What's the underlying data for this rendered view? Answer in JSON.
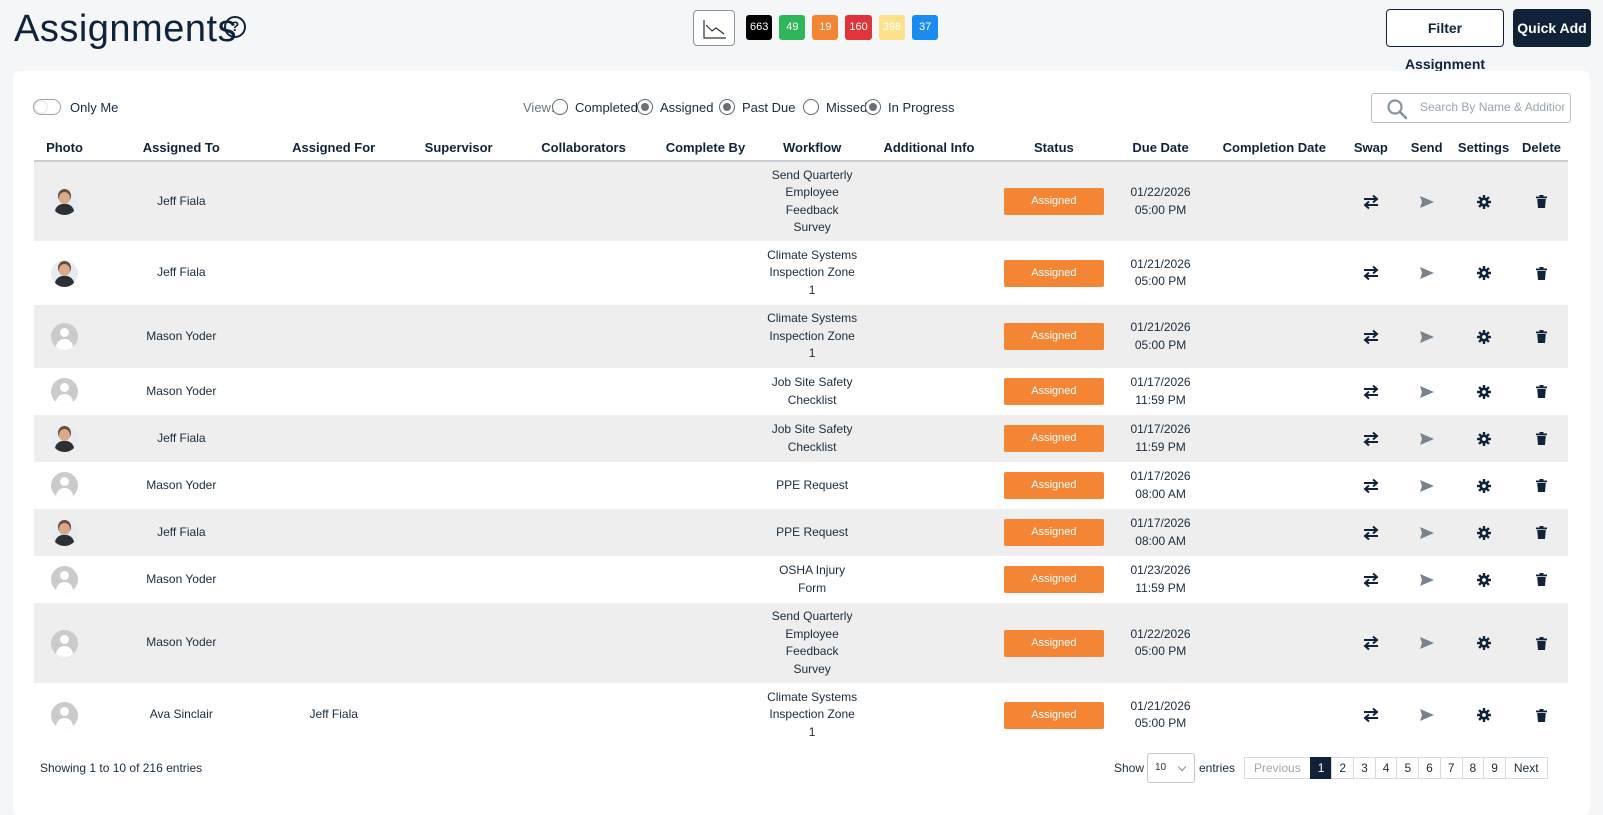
{
  "header": {
    "title": "Assignments",
    "help_icon": "question-circle-icon",
    "chart_icon": "chart-line-icon",
    "badges": [
      {
        "value": "663",
        "color": "#000000"
      },
      {
        "value": "49",
        "color": "#2fb55a"
      },
      {
        "value": "19",
        "color": "#f48535"
      },
      {
        "value": "160",
        "color": "#e0343b"
      },
      {
        "value": "398",
        "color": "#fde08a"
      },
      {
        "value": "37",
        "color": "#1a8cf0"
      }
    ],
    "filter_label": "Filter Assignment",
    "quick_add_label": "Quick Add"
  },
  "toolbar": {
    "only_me_label": "Only Me",
    "view_label": "View:",
    "radios": [
      {
        "label": "Completed",
        "checked": false
      },
      {
        "label": "Assigned",
        "checked": true
      },
      {
        "label": "Past Due",
        "checked": true
      },
      {
        "label": "Missed",
        "checked": false
      },
      {
        "label": "In Progress",
        "checked": true
      }
    ],
    "search_placeholder": "Search By Name & Additional Info"
  },
  "table": {
    "columns": [
      "Photo",
      "Assigned To",
      "Assigned For",
      "Supervisor",
      "Collaborators",
      "Complete By",
      "Workflow",
      "Additional Info",
      "Status",
      "Due Date",
      "Completion Date",
      "Swap",
      "Send",
      "Settings",
      "Delete"
    ],
    "rows": [
      {
        "photo": "photo",
        "assigned_to": "Jeff Fiala",
        "assigned_for": "",
        "workflow": [
          "Send Quarterly",
          "Employee",
          "Feedback",
          "Survey"
        ],
        "status": "Assigned",
        "due": [
          "01/22/2026",
          "05:00 PM"
        ]
      },
      {
        "photo": "photo",
        "assigned_to": "Jeff Fiala",
        "assigned_for": "",
        "workflow": [
          "Climate Systems",
          "Inspection Zone",
          "1"
        ],
        "status": "Assigned",
        "due": [
          "01/21/2026",
          "05:00 PM"
        ]
      },
      {
        "photo": "default",
        "assigned_to": "Mason Yoder",
        "assigned_for": "",
        "workflow": [
          "Climate Systems",
          "Inspection Zone",
          "1"
        ],
        "status": "Assigned",
        "due": [
          "01/21/2026",
          "05:00 PM"
        ]
      },
      {
        "photo": "default",
        "assigned_to": "Mason Yoder",
        "assigned_for": "",
        "workflow": [
          "Job Site Safety",
          "Checklist"
        ],
        "status": "Assigned",
        "due": [
          "01/17/2026",
          "11:59 PM"
        ]
      },
      {
        "photo": "photo",
        "assigned_to": "Jeff Fiala",
        "assigned_for": "",
        "workflow": [
          "Job Site Safety",
          "Checklist"
        ],
        "status": "Assigned",
        "due": [
          "01/17/2026",
          "11:59 PM"
        ]
      },
      {
        "photo": "default",
        "assigned_to": "Mason Yoder",
        "assigned_for": "",
        "workflow": [
          "PPE Request"
        ],
        "status": "Assigned",
        "due": [
          "01/17/2026",
          "08:00 AM"
        ]
      },
      {
        "photo": "photo",
        "assigned_to": "Jeff Fiala",
        "assigned_for": "",
        "workflow": [
          "PPE Request"
        ],
        "status": "Assigned",
        "due": [
          "01/17/2026",
          "08:00 AM"
        ]
      },
      {
        "photo": "default",
        "assigned_to": "Mason Yoder",
        "assigned_for": "",
        "workflow": [
          "OSHA Injury",
          "Form"
        ],
        "status": "Assigned",
        "due": [
          "01/23/2026",
          "11:59 PM"
        ]
      },
      {
        "photo": "default",
        "assigned_to": "Mason Yoder",
        "assigned_for": "",
        "workflow": [
          "Send Quarterly",
          "Employee",
          "Feedback",
          "Survey"
        ],
        "status": "Assigned",
        "due": [
          "01/22/2026",
          "05:00 PM"
        ]
      },
      {
        "photo": "default",
        "assigned_to": "Ava Sinclair",
        "assigned_for": "Jeff Fiala",
        "workflow": [
          "Climate Systems",
          "Inspection Zone",
          "1"
        ],
        "status": "Assigned",
        "due": [
          "01/21/2026",
          "05:00 PM"
        ]
      }
    ],
    "action_icons": [
      "swap-icon",
      "send-icon",
      "gear-icon",
      "trash-icon"
    ]
  },
  "footer": {
    "showing_text": "Showing 1 to 10 of 216 entries",
    "show_label": "Show",
    "page_size": "10",
    "entries_label": "entries",
    "previous_label": "Previous",
    "pages": [
      "1",
      "2",
      "3",
      "4",
      "5",
      "6",
      "7",
      "8",
      "9"
    ],
    "active_page": "1",
    "next_label": "Next"
  }
}
